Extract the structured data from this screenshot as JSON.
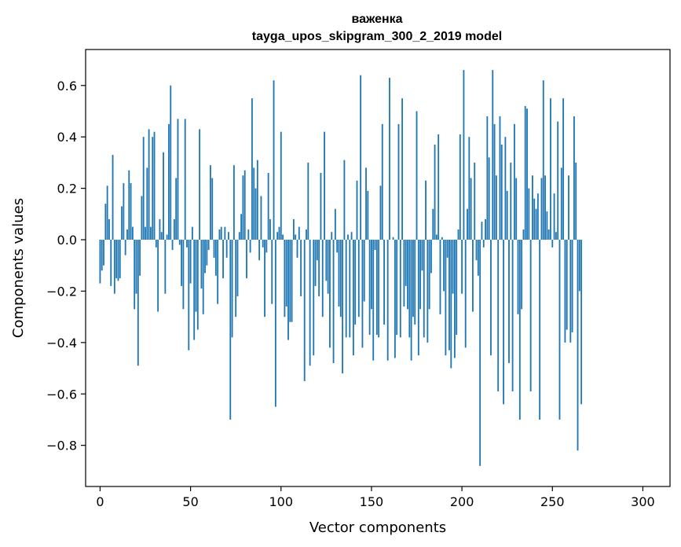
{
  "chart_data": {
    "type": "bar",
    "title_line1": "важенка",
    "title_line2": "tayga_upos_skipgram_300_2_2019 model",
    "xlabel": "Vector components",
    "ylabel": "Components values",
    "xlim": [
      -8,
      315
    ],
    "ylim": [
      -0.96,
      0.74
    ],
    "xticks": [
      0,
      50,
      100,
      150,
      200,
      250,
      300
    ],
    "xtick_labels": [
      "0",
      "50",
      "100",
      "150",
      "200",
      "250",
      "300"
    ],
    "yticks": [
      -0.8,
      -0.6,
      -0.4,
      -0.2,
      0.0,
      0.2,
      0.4,
      0.6
    ],
    "ytick_labels": [
      "−0.8",
      "−0.6",
      "−0.4",
      "−0.2",
      "0.0",
      "0.2",
      "0.4",
      "0.6"
    ],
    "bar_color": "#1f77b4",
    "values": [
      -0.17,
      -0.12,
      -0.1,
      0.14,
      0.21,
      0.08,
      -0.18,
      0.33,
      -0.21,
      -0.15,
      -0.16,
      -0.15,
      0.13,
      0.22,
      -0.06,
      0.04,
      0.27,
      0.22,
      0.05,
      -0.27,
      -0.21,
      -0.49,
      -0.14,
      0.17,
      0.4,
      0.05,
      0.28,
      0.43,
      0.05,
      0.4,
      0.42,
      -0.03,
      -0.28,
      0.08,
      0.03,
      0.34,
      -0.21,
      0.02,
      0.45,
      0.6,
      -0.04,
      0.08,
      0.24,
      0.47,
      -0.02,
      -0.18,
      -0.27,
      0.47,
      -0.03,
      -0.43,
      -0.17,
      0.05,
      -0.39,
      -0.28,
      -0.35,
      0.43,
      -0.19,
      -0.29,
      -0.13,
      -0.1,
      -0.04,
      0.29,
      0.24,
      -0.07,
      -0.14,
      -0.25,
      0.04,
      0.05,
      -0.15,
      0.05,
      -0.07,
      0.03,
      -0.7,
      -0.38,
      0.29,
      -0.3,
      -0.22,
      0.03,
      0.1,
      0.25,
      0.27,
      -0.15,
      0.04,
      -0.05,
      0.55,
      0.28,
      0.2,
      0.31,
      -0.08,
      0.17,
      -0.03,
      -0.3,
      -0.05,
      0.26,
      0.08,
      -0.25,
      0.62,
      -0.65,
      0.03,
      0.05,
      0.42,
      0.02,
      -0.3,
      -0.26,
      -0.39,
      -0.32,
      -0.32,
      0.08,
      0.02,
      -0.07,
      0.05,
      -0.22,
      0.0,
      -0.55,
      0.04,
      0.3,
      -0.49,
      0.0,
      -0.45,
      -0.18,
      -0.08,
      -0.22,
      0.26,
      -0.3,
      0.42,
      -0.16,
      -0.21,
      -0.42,
      0.03,
      -0.48,
      0.12,
      -0.05,
      -0.26,
      -0.3,
      -0.52,
      0.31,
      -0.38,
      0.02,
      -0.38,
      0.03,
      -0.45,
      -0.33,
      0.23,
      -0.3,
      0.64,
      -0.42,
      -0.24,
      0.28,
      0.19,
      -0.37,
      -0.27,
      -0.47,
      -0.04,
      -0.37,
      -0.38,
      0.21,
      0.45,
      -0.33,
      0.0,
      -0.47,
      0.63,
      0.0,
      0.01,
      -0.46,
      -0.37,
      0.45,
      -0.38,
      0.55,
      -0.26,
      -0.18,
      -0.27,
      -0.38,
      -0.47,
      -0.3,
      -0.33,
      0.5,
      -0.45,
      -0.27,
      -0.12,
      -0.38,
      0.23,
      -0.4,
      -0.27,
      -0.13,
      0.12,
      0.37,
      0.02,
      0.41,
      -0.29,
      0.01,
      -0.2,
      -0.45,
      -0.07,
      -0.43,
      -0.5,
      -0.21,
      -0.46,
      -0.37,
      0.04,
      0.41,
      -0.21,
      0.66,
      -0.42,
      0.12,
      0.4,
      0.24,
      -0.28,
      0.3,
      -0.08,
      -0.14,
      -0.88,
      0.07,
      -0.03,
      0.08,
      0.48,
      0.32,
      -0.45,
      0.66,
      0.45,
      0.25,
      -0.59,
      0.48,
      0.37,
      -0.64,
      0.4,
      0.19,
      -0.48,
      0.3,
      -0.59,
      0.45,
      0.24,
      -0.29,
      -0.7,
      -0.27,
      0.04,
      0.52,
      0.51,
      0.2,
      -0.59,
      0.25,
      0.16,
      0.12,
      0.18,
      -0.7,
      0.24,
      0.62,
      0.25,
      0.11,
      0.04,
      0.55,
      -0.03,
      0.18,
      0.03,
      0.46,
      -0.7,
      0.28,
      0.55,
      -0.4,
      -0.35,
      0.25,
      -0.4,
      -0.36,
      0.48,
      0.3,
      -0.82,
      -0.2,
      -0.64,
      0.0,
      0.0,
      0.0
    ]
  }
}
